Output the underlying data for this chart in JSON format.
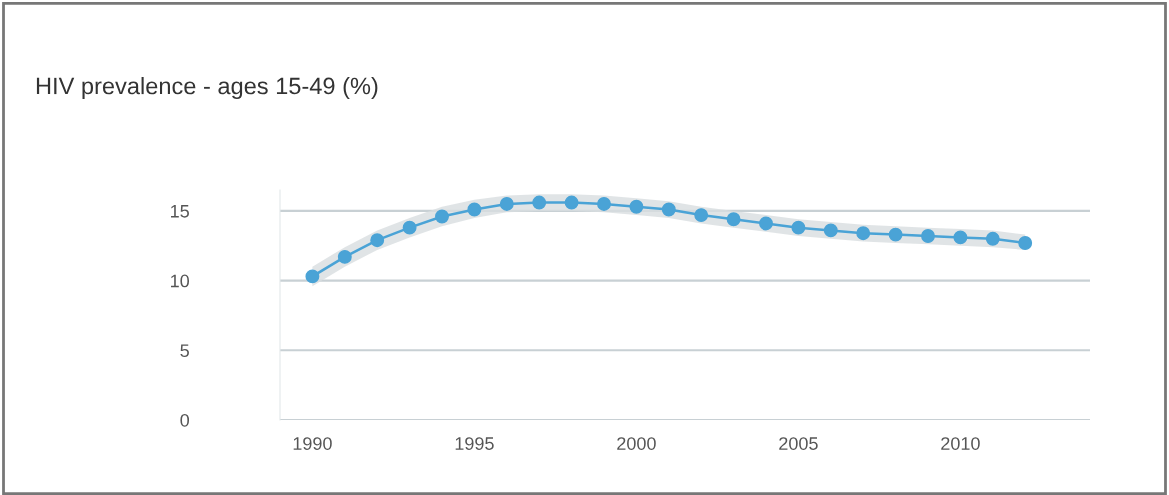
{
  "chart_data": {
    "type": "line",
    "title": "HIV prevalence - ages 15-49 (%)",
    "x": [
      1990,
      1991,
      1992,
      1993,
      1994,
      1995,
      1996,
      1997,
      1998,
      1999,
      2000,
      2001,
      2002,
      2003,
      2004,
      2005,
      2006,
      2007,
      2008,
      2009,
      2010,
      2011,
      2012
    ],
    "series": [
      {
        "color": "#4aa3d6",
        "values": [
          10.3,
          11.7,
          12.9,
          13.8,
          14.6,
          15.1,
          15.5,
          15.6,
          15.6,
          15.5,
          15.3,
          15.1,
          14.7,
          14.4,
          14.1,
          13.8,
          13.6,
          13.4,
          13.3,
          13.2,
          13.1,
          13.0,
          12.7
        ],
        "lower": [
          9.6,
          11.0,
          12.2,
          13.1,
          13.9,
          14.5,
          14.9,
          15.0,
          15.0,
          14.9,
          14.7,
          14.5,
          14.1,
          13.8,
          13.5,
          13.2,
          13.0,
          12.8,
          12.7,
          12.6,
          12.5,
          12.4,
          12.2
        ],
        "upper": [
          11.0,
          12.4,
          13.6,
          14.5,
          15.3,
          15.8,
          16.1,
          16.2,
          16.2,
          16.1,
          15.9,
          15.7,
          15.3,
          15.0,
          14.7,
          14.4,
          14.2,
          14.0,
          13.9,
          13.8,
          13.7,
          13.6,
          13.3
        ]
      }
    ],
    "xlim": [
      1989,
      2014
    ],
    "xticks": [
      1990,
      1995,
      2000,
      2005,
      2010
    ],
    "ylim": [
      0,
      16.5
    ],
    "yticks": [
      0,
      5,
      10,
      15
    ],
    "grid": "y",
    "marker": "circle",
    "line_style": "solid",
    "legend": false
  }
}
